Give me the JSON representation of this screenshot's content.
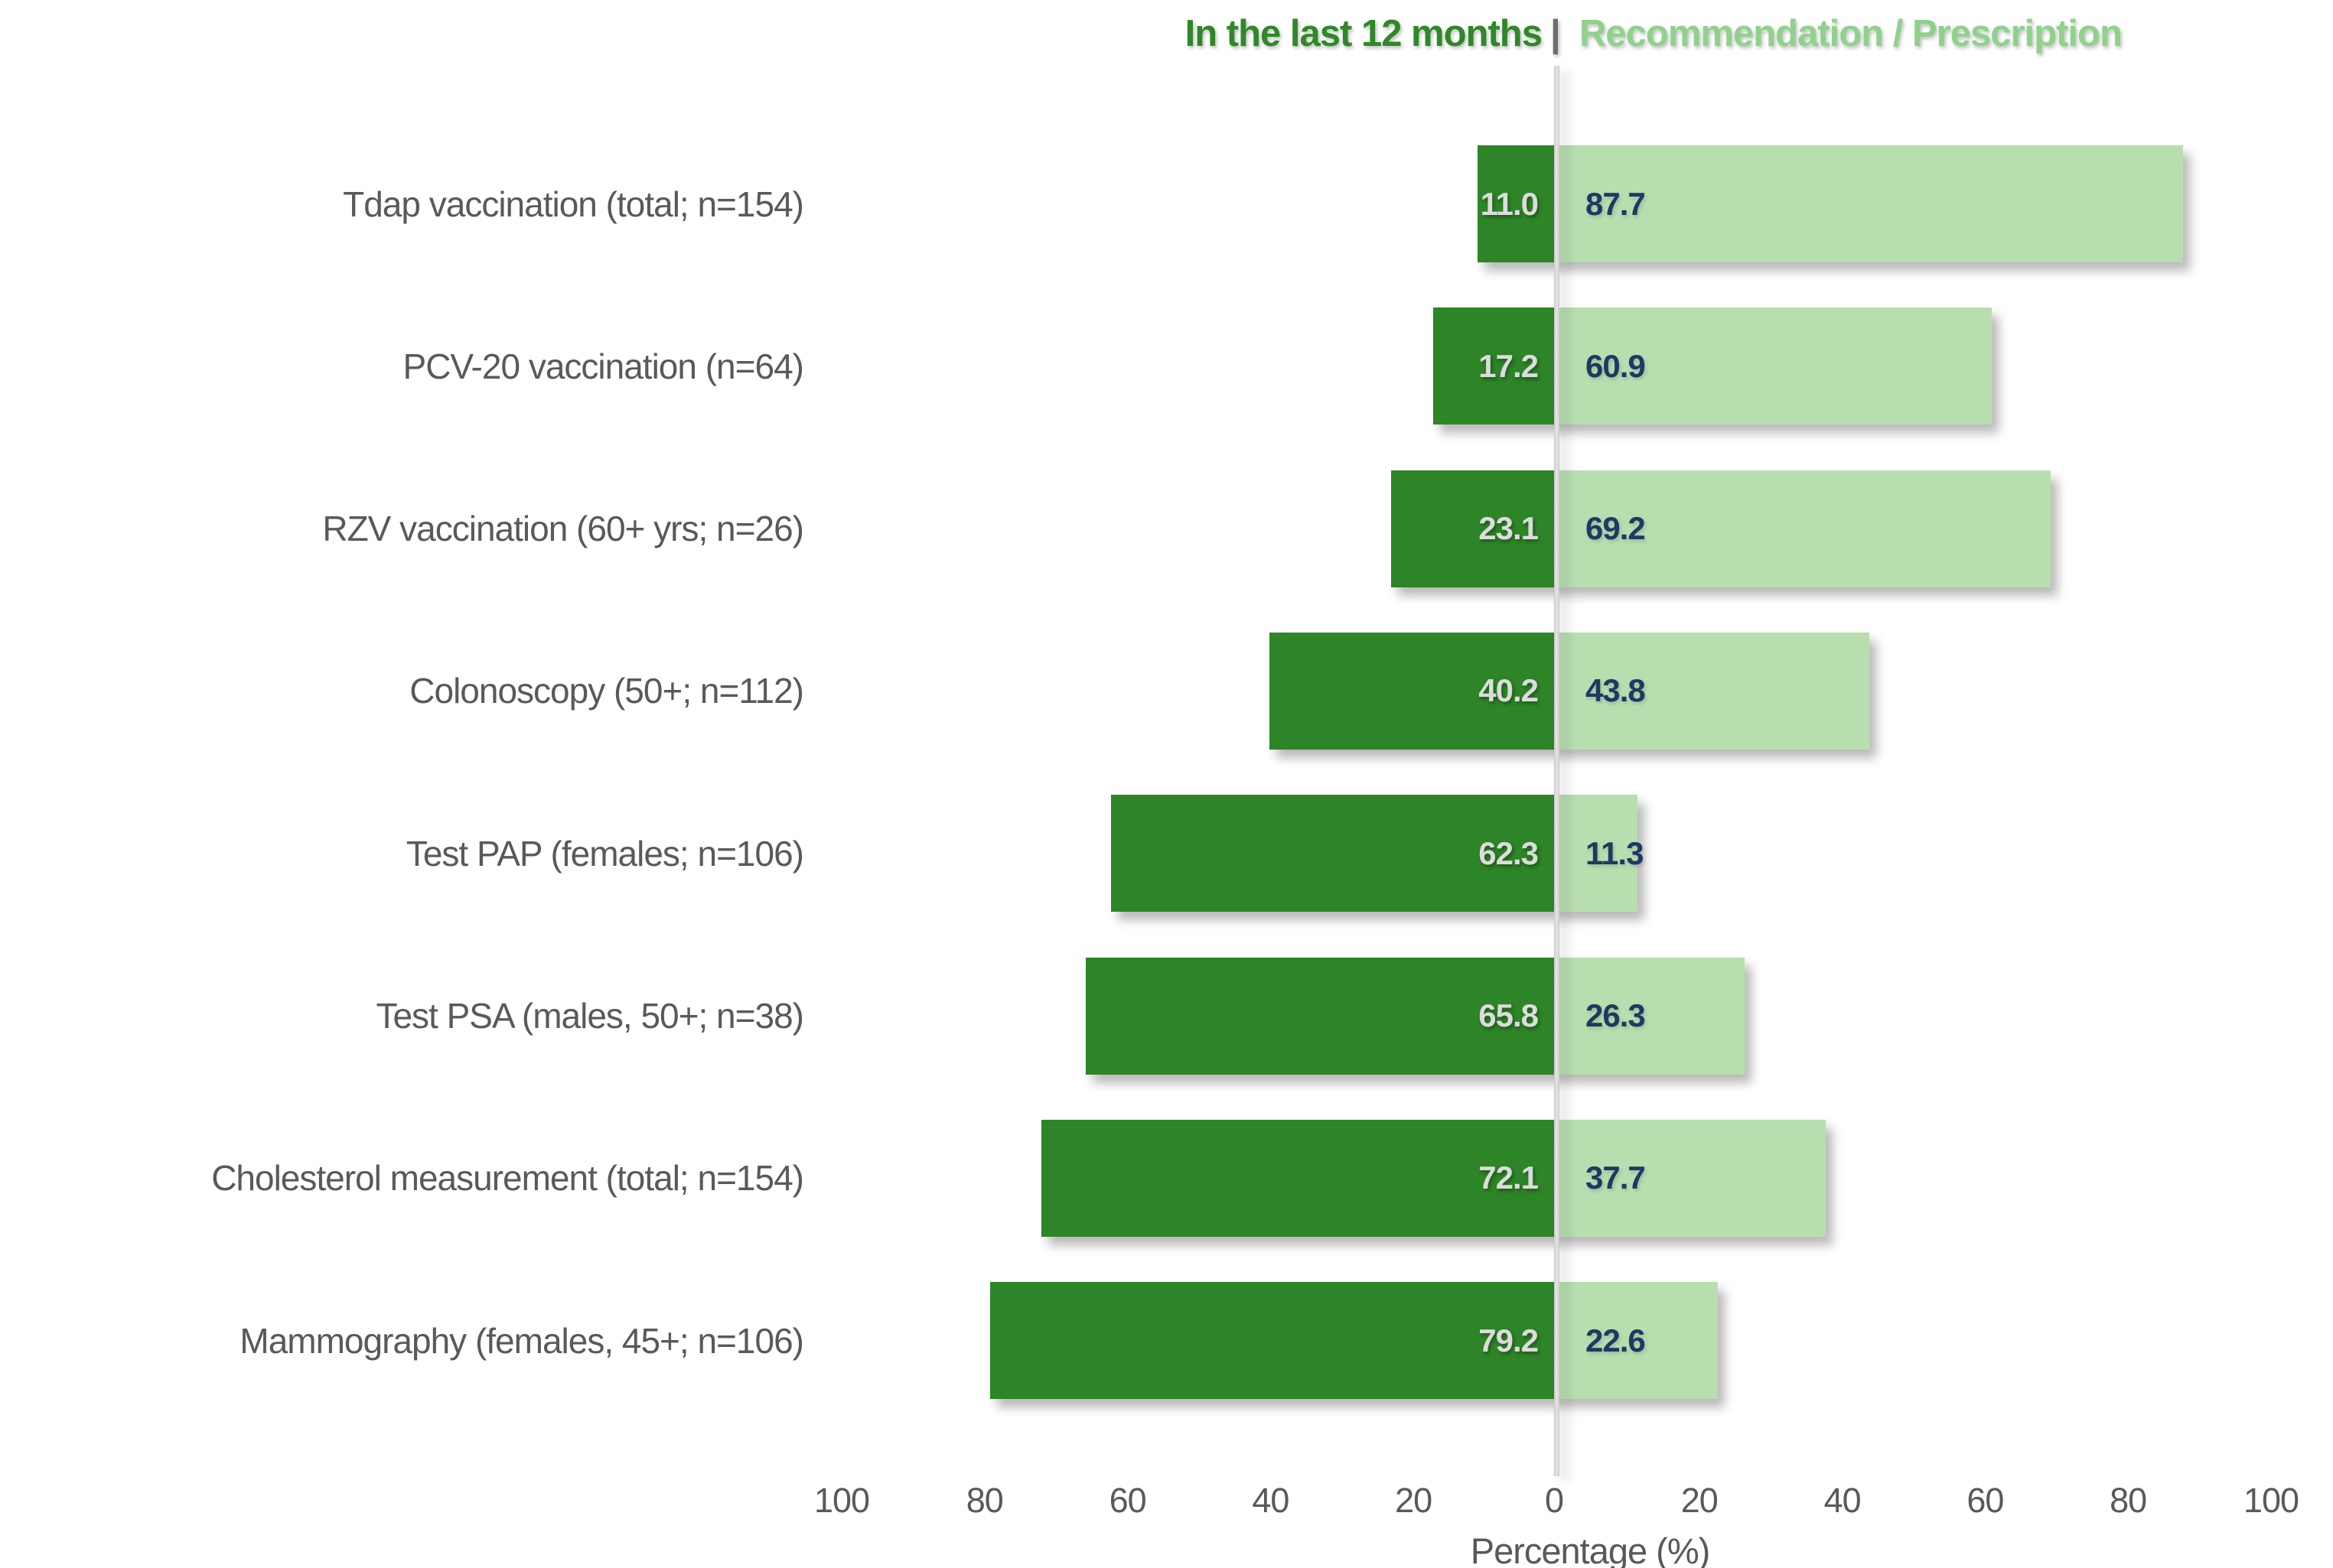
{
  "chart_data": {
    "type": "bar",
    "variant": "diverging-horizontal",
    "title": {
      "left": "In the last 12 months",
      "separator": "|",
      "right": "Recommendation / Prescription"
    },
    "categories": [
      "Tdap vaccination (total; n=154)",
      "PCV-20 vaccination (n=64)",
      "RZV vaccination (60+ yrs; n=26)",
      "Colonoscopy (50+; n=112)",
      "Test PAP (females; n=106)",
      "Test PSA (males, 50+; n=38)",
      "Cholesterol measurement (total; n=154)",
      "Mammography (females, 45+; n=106)"
    ],
    "series": [
      {
        "name": "In the last 12 months",
        "side": "left",
        "color": "#2d8527",
        "value_label_color": "#dcdcdc",
        "values": [
          11.0,
          17.2,
          23.1,
          40.2,
          62.3,
          65.8,
          72.1,
          79.2
        ]
      },
      {
        "name": "Recommendation / Prescription",
        "side": "right",
        "color": "#b8deb0",
        "value_label_color": "#1f3864",
        "values": [
          87.7,
          60.9,
          69.2,
          43.8,
          11.3,
          26.3,
          37.7,
          22.6
        ]
      }
    ],
    "xlabel": "Percentage (%)",
    "x_axis": {
      "ticks_left": [
        100,
        80,
        60,
        40,
        20
      ],
      "zero_label": "0",
      "ticks_right": [
        20,
        40,
        60,
        80,
        100
      ],
      "max_pct": 100
    },
    "value_decimals": 1,
    "colors": {
      "title_left": "#2f8828",
      "title_separator": "#716d68",
      "title_right": "#8fd28b",
      "category_label": "#595959",
      "tick_label": "#595959",
      "axis_label": "#595959",
      "zero_line": "#d0d0d0",
      "background": "#ffffff"
    },
    "legend_position": "top",
    "grid": "none"
  }
}
